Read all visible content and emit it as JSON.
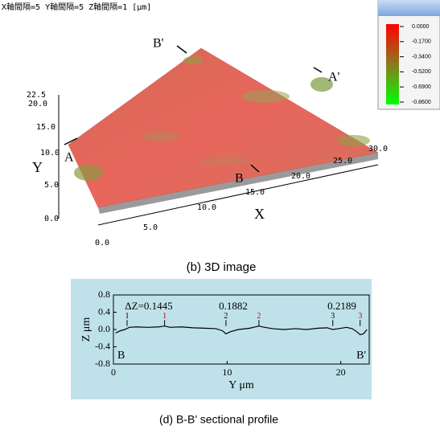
{
  "header": "X軸間隔=5 Y軸間隔=5 Z軸間隔=1 [μm]",
  "figure_b": {
    "caption": "(b) 3D image",
    "colorbar_labels": [
      "0.0000",
      "-0.1700",
      "-0.3400",
      "-0.5200",
      "-0.6900",
      "-0.8600"
    ],
    "y_axis_ticks": [
      "22.5",
      "20.0",
      "15.0",
      "10.0",
      "5.0",
      "0.0"
    ],
    "x_axis_ticks": [
      "0.0",
      "5.0",
      "10.0",
      "15.0",
      "20.0",
      "25.0",
      "30.0"
    ],
    "x_label": "X",
    "y_label": "Y",
    "points": {
      "A": "A",
      "A_prime": "A'",
      "B": "B",
      "B_prime": "B'"
    }
  },
  "chart_data": {
    "type": "line",
    "caption": "(d)  B-B’ sectional profile",
    "x_label": "Y μm",
    "y_label": "Z μm",
    "x": [
      0.2,
      0.6,
      1.0,
      1.4,
      2,
      3,
      4,
      4.5,
      5,
      6,
      7,
      8,
      9,
      9.6,
      9.9,
      10.3,
      11,
      12,
      12.8,
      13.3,
      14,
      15,
      16,
      17,
      18,
      18.8,
      19.3,
      19.8,
      20.5,
      21,
      21.4,
      21.7,
      22,
      22.3
    ],
    "series": [
      {
        "color": "#000000",
        "values": [
          -0.08,
          -0.03,
          0.0,
          0.05,
          0.06,
          0.05,
          0.06,
          0.08,
          0.05,
          0.06,
          0.04,
          0.03,
          0.02,
          -0.03,
          -0.1,
          -0.05,
          0.0,
          0.03,
          0.08,
          0.05,
          0.02,
          0.0,
          0.02,
          0.0,
          0.03,
          0.04,
          0.0,
          0.02,
          0.05,
          0.02,
          -0.05,
          -0.12,
          -0.1,
          0.0
        ]
      }
    ],
    "xlim": [
      0,
      22.5
    ],
    "xticks": [
      0,
      10,
      20
    ],
    "ylim": [
      -0.8,
      0.8
    ],
    "yticks": [
      -0.8,
      -0.4,
      {
        "value": 0,
        "label": "0.0"
      },
      0.4,
      0.8
    ],
    "annotations": [
      "ΔZ=0.1445",
      "0.1882",
      "0.2189"
    ],
    "markers": [
      {
        "label": "1",
        "x": 1.2,
        "color": "#000000"
      },
      {
        "label": "1",
        "x": 4.5,
        "color": "#cc0000"
      },
      {
        "label": "2",
        "x": 9.9,
        "color": "#000000"
      },
      {
        "label": "2",
        "x": 12.8,
        "color": "#cc0000"
      },
      {
        "label": "3",
        "x": 19.3,
        "color": "#000000"
      },
      {
        "label": "3",
        "x": 21.7,
        "color": "#cc0000"
      }
    ],
    "end_labels": [
      "B",
      "B'"
    ],
    "background": "#bfe2ea"
  }
}
